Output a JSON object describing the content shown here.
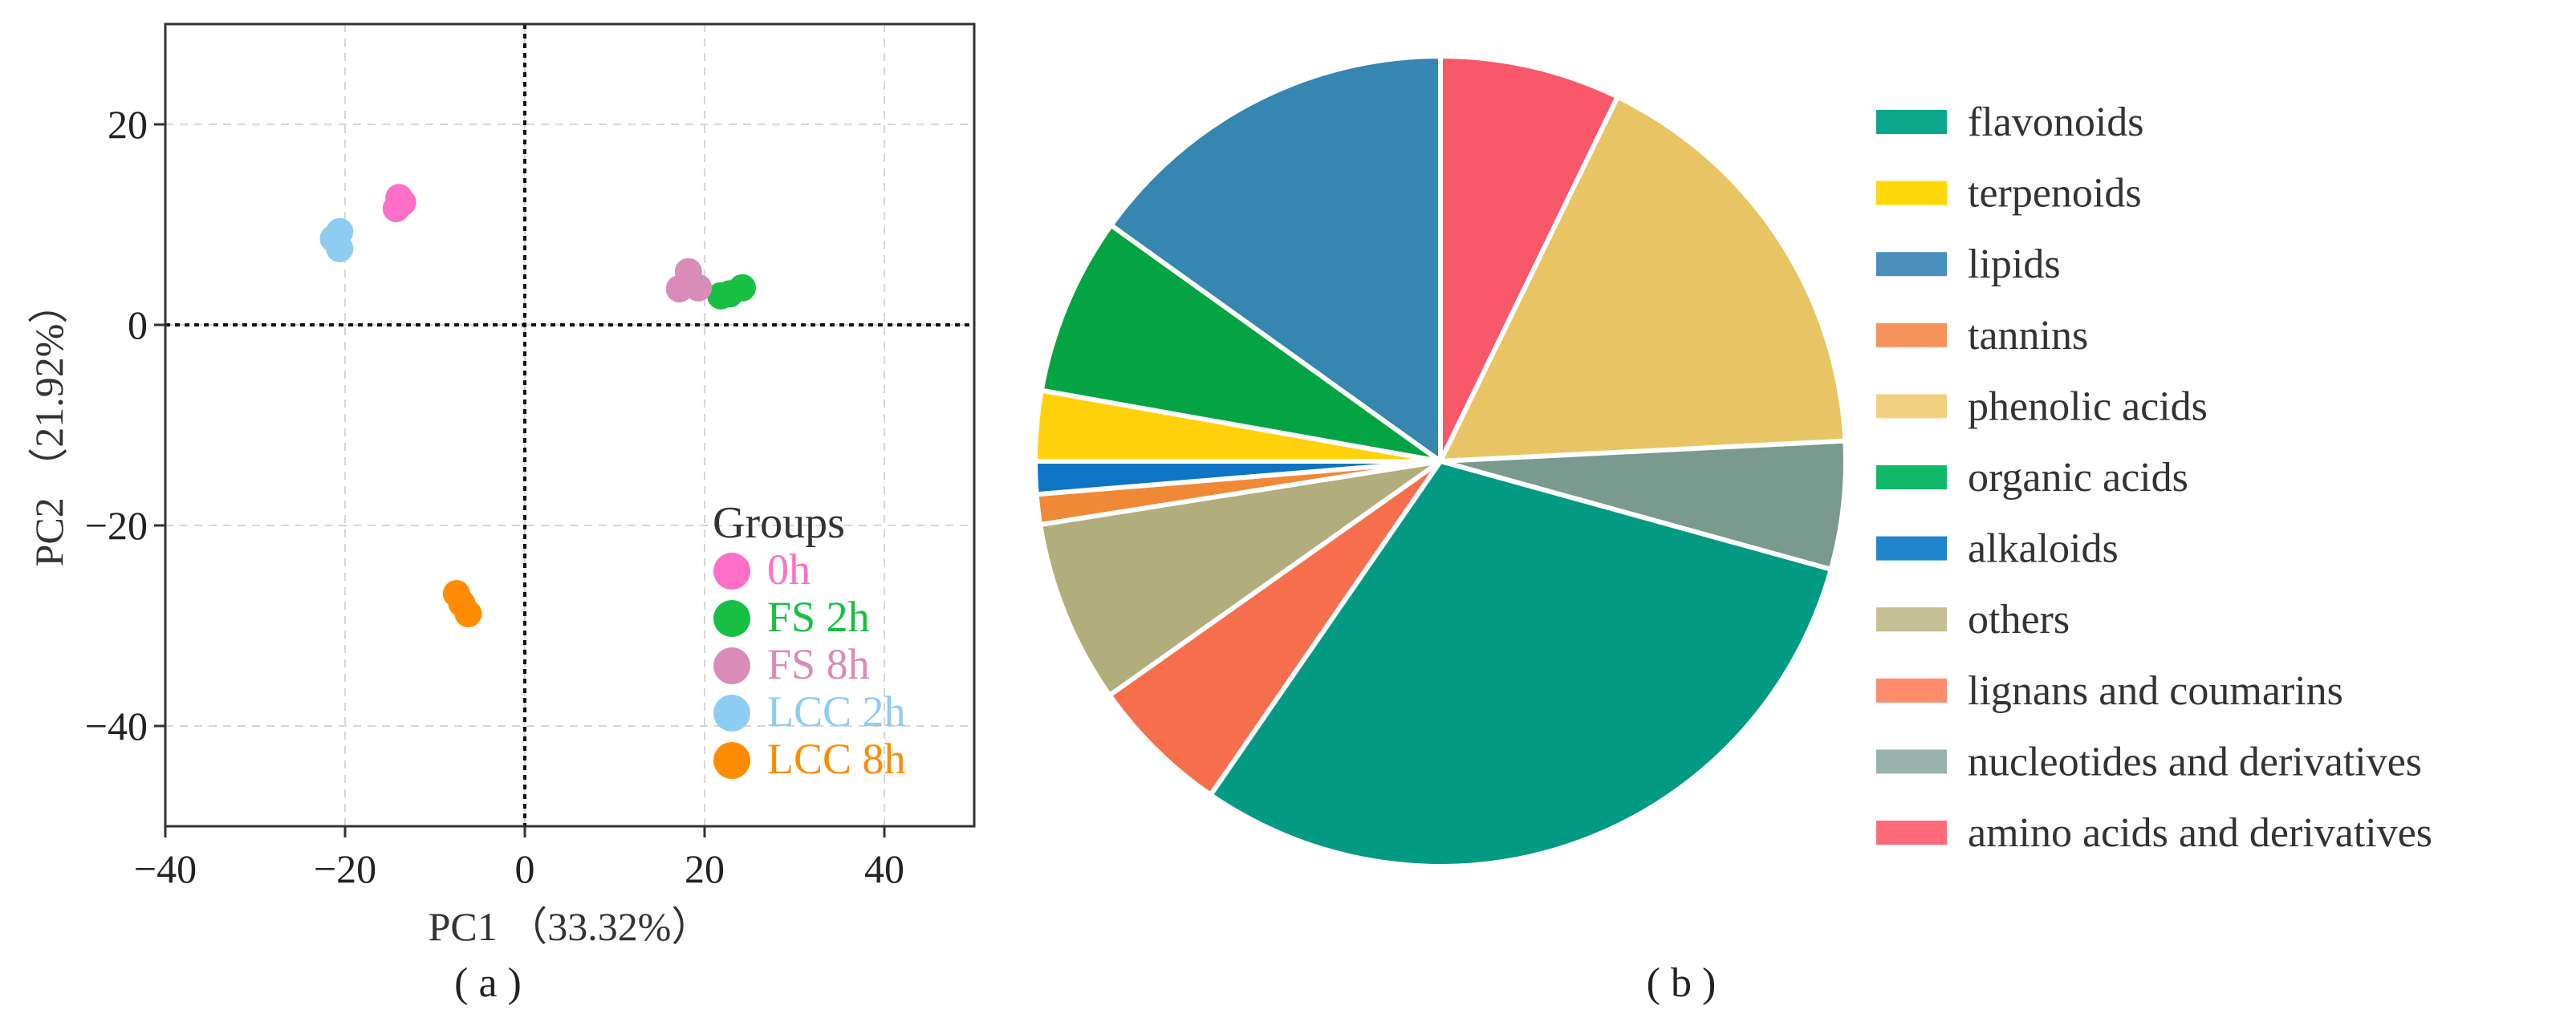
{
  "chart_data": [
    {
      "type": "scatter",
      "panel_label": "( a )",
      "xlabel": "PC1 （33.32%）",
      "ylabel": "PC2 （21.92%）",
      "xlim": [
        -40,
        50
      ],
      "ylim": [
        -50,
        30
      ],
      "xticks": [
        -40,
        -20,
        0,
        20,
        40
      ],
      "yticks": [
        20,
        0,
        -20,
        -40
      ],
      "grid": true,
      "zero_lines": true,
      "legend": {
        "title": "Groups",
        "position": "bottom-right"
      },
      "series": [
        {
          "name": "0h",
          "color": "#ff6ec7",
          "points": [
            [
              -14,
              12.7
            ],
            [
              -14.3,
              11.6
            ],
            [
              -13.6,
              12.2
            ]
          ]
        },
        {
          "name": "FS 2h",
          "color": "#17c043",
          "points": [
            [
              21.8,
              2.9
            ],
            [
              22.8,
              3.1
            ],
            [
              24.2,
              3.7
            ]
          ]
        },
        {
          "name": "FS 8h",
          "color": "#d98cb8",
          "points": [
            [
              18.2,
              5.3
            ],
            [
              17.2,
              3.6
            ],
            [
              19.3,
              3.7
            ]
          ]
        },
        {
          "name": "LCC 2h",
          "color": "#8ecdf2",
          "points": [
            [
              -21.3,
              8.6
            ],
            [
              -20.6,
              9.3
            ],
            [
              -20.6,
              7.6
            ]
          ]
        },
        {
          "name": "LCC 8h",
          "color": "#ff8c00",
          "points": [
            [
              -7.6,
              -26.8
            ],
            [
              -7,
              -27.8
            ],
            [
              -6.3,
              -28.8
            ]
          ]
        }
      ]
    },
    {
      "type": "pie",
      "panel_label": "( b )",
      "legend": {
        "position": "right"
      },
      "categories": [
        "flavonoids",
        "terpenoids",
        "lipids",
        "tannins",
        "phenolic acids",
        "organic acids",
        "alkaloids",
        "others",
        "lignans and coumarins",
        "nucleotides and derivatives",
        "amino acids and derivatives"
      ],
      "legend_colors": [
        "#0aa58b",
        "#ffd80a",
        "#4a90bd",
        "#f5935a",
        "#f0cf7e",
        "#10b868",
        "#1f84cc",
        "#c4bf94",
        "#ff8c6b",
        "#98b3ad",
        "#ff6b7a"
      ],
      "slices": [
        {
          "label": "amino acids and derivatives",
          "value": 7.2,
          "color": "#f9576a"
        },
        {
          "label": "phenolic acids",
          "value": 17.0,
          "color": "#e8c464"
        },
        {
          "label": "nucleotides and derivatives",
          "value": 5.1,
          "color": "#7a9a90"
        },
        {
          "label": "flavonoids",
          "value": 30.3,
          "color": "#039a84"
        },
        {
          "label": "lignans and coumarins",
          "value": 5.6,
          "color": "#f66e4c"
        },
        {
          "label": "others",
          "value": 7.3,
          "color": "#b2ad7c"
        },
        {
          "label": "tannins",
          "value": 1.2,
          "color": "#ef8935"
        },
        {
          "label": "alkaloids",
          "value": 1.3,
          "color": "#0f74c4"
        },
        {
          "label": "terpenoids",
          "value": 2.8,
          "color": "#ffd10b"
        },
        {
          "label": "organic acids",
          "value": 7.1,
          "color": "#04a444"
        },
        {
          "label": "lipids",
          "value": 15.1,
          "color": "#3586b0"
        }
      ]
    }
  ]
}
